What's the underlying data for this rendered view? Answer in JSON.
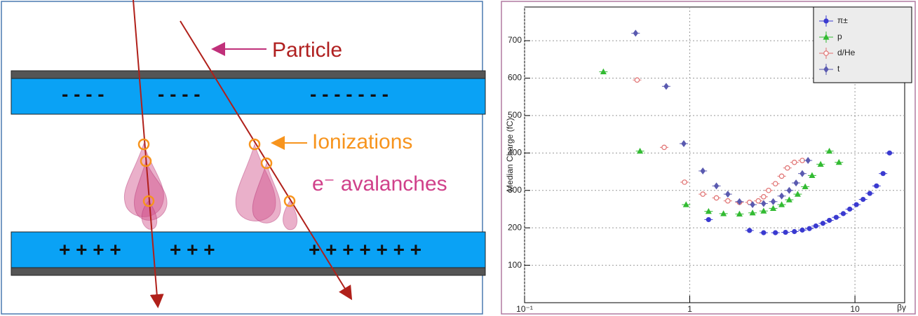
{
  "diagram": {
    "particle_label": "Particle",
    "ionization_label": "Ionizations",
    "avalanche_label": "e⁻ avalanches",
    "top_charges": [
      "- - - -",
      "- - - -",
      "- - - - - - -"
    ],
    "bottom_charges": [
      "+ + + +",
      "+ + +",
      "+ + + + + + +"
    ]
  },
  "chart_data": {
    "type": "scatter",
    "x_label": "βγ",
    "y_label": "Median Charge (fC)",
    "xlim": [
      0.1,
      20
    ],
    "xticks": [
      {
        "value": 0.1,
        "label": "10⁻¹"
      },
      1,
      10
    ],
    "log_x": true,
    "ylim": [
      0,
      790
    ],
    "yticks": [
      100,
      200,
      300,
      400,
      500,
      600,
      700
    ],
    "grid": true,
    "legend": "upper right",
    "series": [
      {
        "name": "π±",
        "color": "#3a3ad0",
        "marker": "circle",
        "x": [
          1.3,
          2.3,
          2.8,
          3.3,
          3.8,
          4.3,
          4.8,
          5.3,
          5.8,
          6.4,
          7,
          7.7,
          8.5,
          9.3,
          10.2,
          11.2,
          12.3,
          13.5,
          14.8,
          16.2
        ],
        "values": [
          222,
          193,
          187,
          187,
          188,
          190,
          194,
          198,
          205,
          212,
          220,
          228,
          238,
          250,
          262,
          276,
          292,
          312,
          345,
          400
        ]
      },
      {
        "name": "p",
        "color": "#33bb33",
        "marker": "triangle",
        "x": [
          0.3,
          0.5,
          0.95,
          1.3,
          1.6,
          2.0,
          2.4,
          2.8,
          3.2,
          3.6,
          4.0,
          4.5,
          5.0,
          5.5,
          6.2,
          7,
          8
        ],
        "values": [
          617,
          405,
          262,
          244,
          238,
          237,
          240,
          245,
          252,
          262,
          275,
          290,
          310,
          340,
          370,
          405,
          375
        ]
      },
      {
        "name": "d/He",
        "color": "#e07070",
        "marker": "open-circle",
        "x": [
          0.48,
          0.7,
          0.93,
          1.2,
          1.45,
          1.7,
          2.0,
          2.3,
          2.6,
          2.8,
          3.0,
          3.3,
          3.6,
          3.9,
          4.3,
          4.8
        ],
        "values": [
          595,
          415,
          322,
          290,
          280,
          272,
          268,
          268,
          272,
          283,
          300,
          318,
          338,
          360,
          375,
          380
        ]
      },
      {
        "name": "t",
        "color": "#5a5ab0",
        "marker": "diamond",
        "x": [
          0.47,
          0.72,
          0.92,
          1.2,
          1.45,
          1.7,
          2.0,
          2.4,
          2.8,
          3.2,
          3.6,
          4.0,
          4.4,
          4.8,
          5.2
        ],
        "values": [
          720,
          578,
          425,
          352,
          312,
          290,
          270,
          262,
          265,
          270,
          285,
          300,
          320,
          345,
          380
        ]
      }
    ]
  }
}
